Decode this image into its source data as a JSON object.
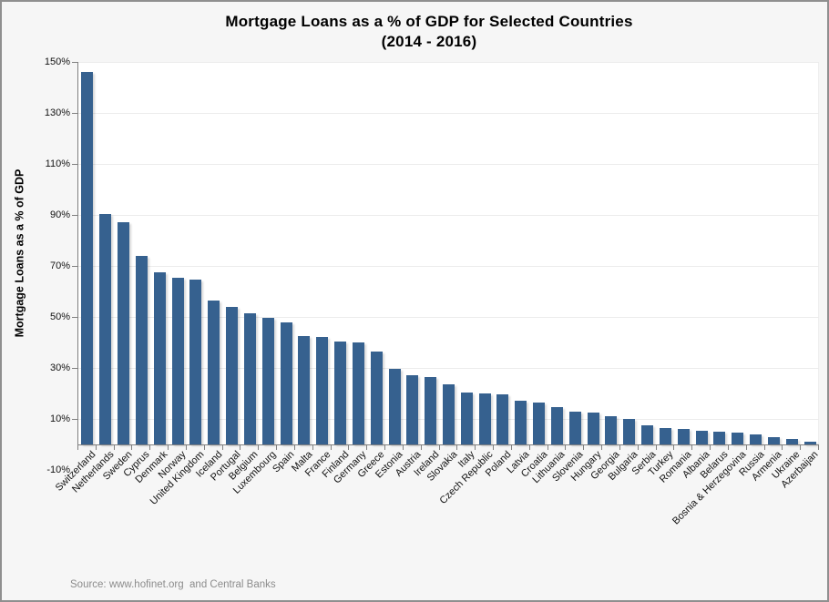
{
  "title": {
    "line1": "Mortgage Loans as a % of GDP for Selected Countries",
    "line2": "(2014 - 2016)"
  },
  "y_axis": {
    "title": "Mortgage Loans as a % of GDP",
    "tick_labels": [
      "150%",
      "130%",
      "110%",
      "90%",
      "70%",
      "50%",
      "30%",
      "10%",
      "-10%"
    ]
  },
  "source": "Source: www.hofinet.org  and Central Banks",
  "colors": {
    "bar": "#36618F",
    "gridline": "#ECECEC",
    "axis": "#808080",
    "background": "#F6F6F6",
    "plot_background": "#FFFFFF",
    "source_text": "#8C8C8C"
  },
  "chart_data": {
    "type": "bar",
    "title": "Mortgage Loans as a % of GDP for Selected Countries (2014 - 2016)",
    "ylabel": "Mortgage Loans as a % of GDP",
    "ylim": [
      -10,
      150
    ],
    "y_major_unit": 20,
    "grid": true,
    "legend": "none",
    "categories": [
      "Switzerland",
      "Netherlands",
      "Sweden",
      "Cyprus",
      "Denmark",
      "Norway",
      "United Kingdom",
      "Iceland",
      "Portugal",
      "Belgium",
      "Luxembourg",
      "Spain",
      "Malta",
      "France",
      "Finland",
      "Germany",
      "Greece",
      "Estonia",
      "Austria",
      "Ireland",
      "Slovakia",
      "Italy",
      "Czech Republic",
      "Poland",
      "Latvia",
      "Croatia",
      "Lithuania",
      "Slovenia",
      "Hungary",
      "Georgia",
      "Bulgaria",
      "Serbia",
      "Turkey",
      "Romania",
      "Albania",
      "Belarus",
      "Bosnia & Herzegovina",
      "Russia",
      "Armenia",
      "Ukraine",
      "Azerbaijan"
    ],
    "values": [
      146,
      90.5,
      87,
      74,
      67.5,
      65.5,
      64.5,
      56.5,
      54,
      51.5,
      49.5,
      48,
      42.5,
      42,
      40.5,
      40,
      36.5,
      29.5,
      27,
      26.5,
      23.5,
      20.5,
      20,
      19.5,
      17,
      16.5,
      14.5,
      13,
      12.5,
      11,
      10,
      7.5,
      6.5,
      6,
      5.5,
      5,
      4.5,
      4,
      3,
      2,
      1
    ]
  }
}
